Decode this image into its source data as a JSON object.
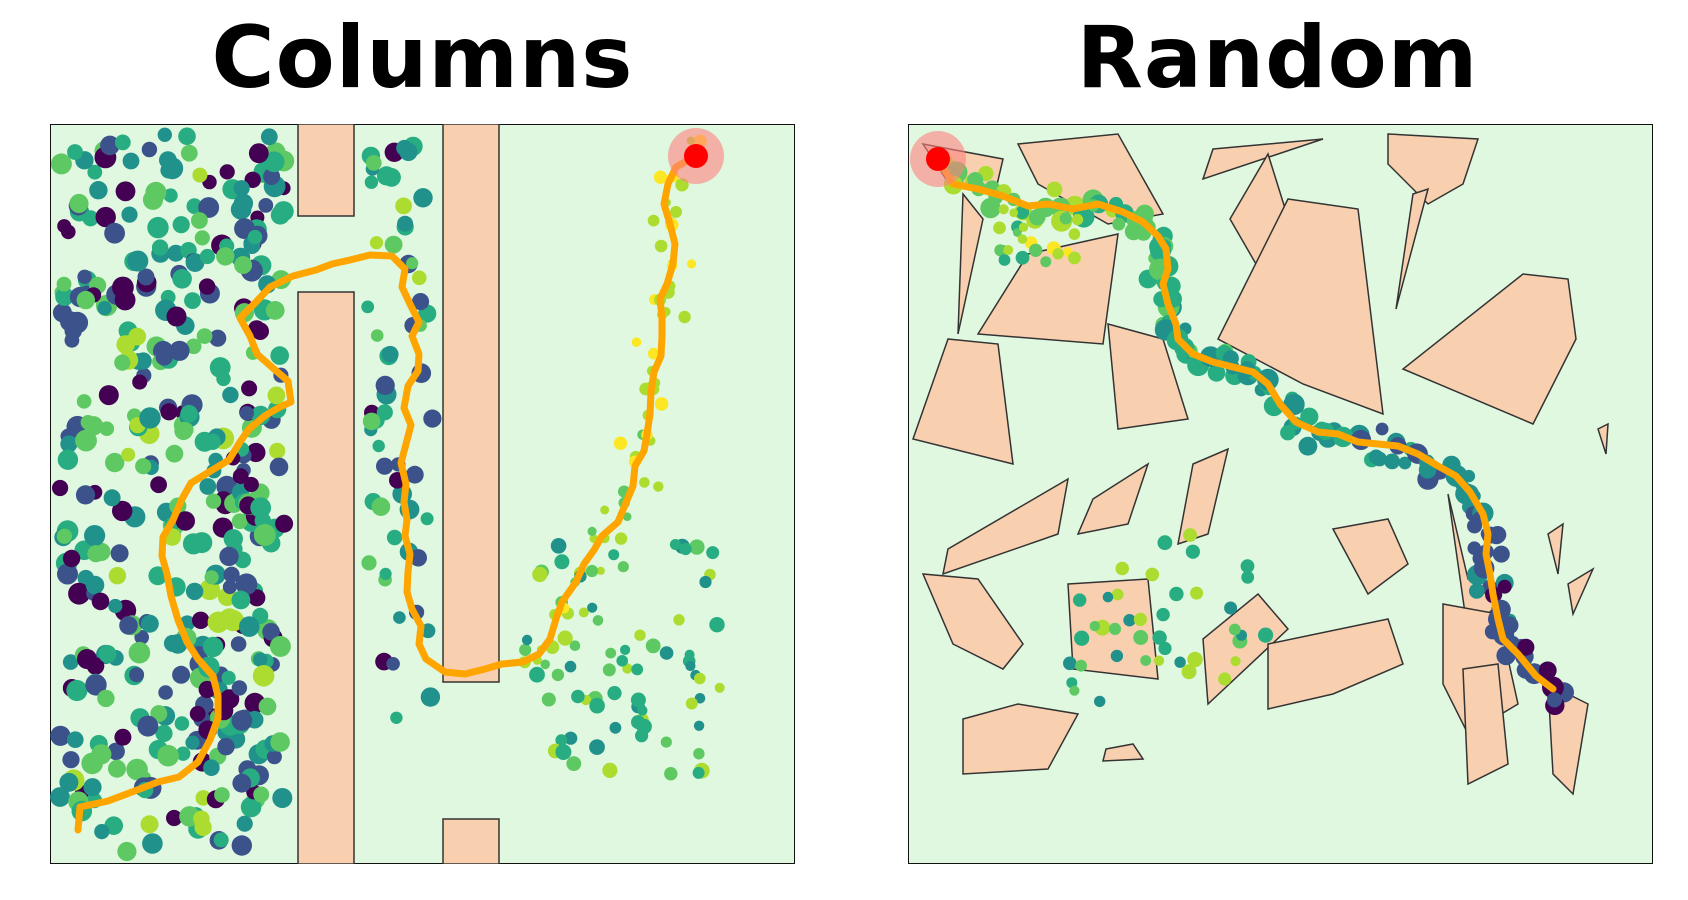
{
  "panels": [
    {
      "id": "columns",
      "title": "Columns"
    },
    {
      "id": "random",
      "title": "Random"
    }
  ],
  "colors": {
    "free_space": "#e0f8e0",
    "obstacle": "#f8d0b0",
    "obstacle_edge": "#333333",
    "path": "#ffa500",
    "goal": "#ff0000",
    "goal_halo": "#ff8080",
    "node_palette": [
      "#440154",
      "#3b528b",
      "#21918c",
      "#27ad81",
      "#5ec962",
      "#addc30",
      "#fde725"
    ]
  }
}
